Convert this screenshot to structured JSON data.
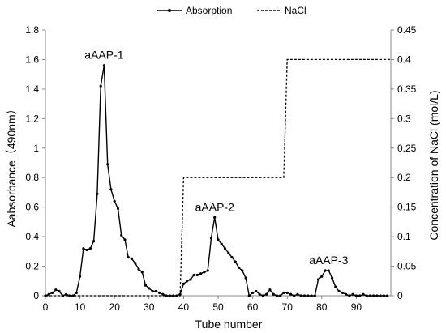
{
  "chart_data": {
    "type": "line",
    "xlabel": "Tube number",
    "ylabel": "Aabsorbance（490nm）",
    "y2label": "Concentration of NaCl (mol/L)",
    "xlim": [
      0,
      100
    ],
    "ylim": [
      0,
      1.8
    ],
    "y2lim": [
      0,
      0.45
    ],
    "x_ticks": [
      0,
      10,
      20,
      30,
      40,
      50,
      60,
      70,
      80,
      90
    ],
    "y_ticks": [
      "0",
      "0.2",
      "0.4",
      "0.6",
      "0.8",
      "1",
      "1.2",
      "1.4",
      "1.6",
      "1.8"
    ],
    "y2_ticks": [
      "0",
      "0.05",
      "0.1",
      "0.15",
      "0.2",
      "0.25",
      "0.3",
      "0.35",
      "0.4",
      "0.45"
    ],
    "legend_position": "top-center",
    "grid": false,
    "series": [
      {
        "name": "Absorption",
        "axis": "left",
        "style": "solid-with-markers",
        "color": "#000000",
        "points": [
          [
            0,
            0.0
          ],
          [
            1,
            0.01
          ],
          [
            2,
            0.02
          ],
          [
            3,
            0.04
          ],
          [
            4,
            0.03
          ],
          [
            5,
            0.0
          ],
          [
            6,
            0.01
          ],
          [
            7,
            0.0
          ],
          [
            8,
            0.0
          ],
          [
            9,
            0.02
          ],
          [
            10,
            0.13
          ],
          [
            11,
            0.32
          ],
          [
            12,
            0.31
          ],
          [
            13,
            0.32
          ],
          [
            14,
            0.37
          ],
          [
            15,
            0.69
          ],
          [
            16,
            1.42
          ],
          [
            17,
            1.56
          ],
          [
            18,
            0.89
          ],
          [
            19,
            0.72
          ],
          [
            20,
            0.64
          ],
          [
            21,
            0.59
          ],
          [
            22,
            0.41
          ],
          [
            23,
            0.38
          ],
          [
            24,
            0.26
          ],
          [
            25,
            0.25
          ],
          [
            26,
            0.22
          ],
          [
            27,
            0.18
          ],
          [
            28,
            0.16
          ],
          [
            29,
            0.07
          ],
          [
            30,
            0.05
          ],
          [
            31,
            0.03
          ],
          [
            32,
            0.03
          ],
          [
            33,
            0.02
          ],
          [
            34,
            0.01
          ],
          [
            35,
            0.0
          ],
          [
            36,
            0.0
          ],
          [
            37,
            0.0
          ],
          [
            38,
            0.0
          ],
          [
            39,
            0.01
          ],
          [
            40,
            0.08
          ],
          [
            41,
            0.1
          ],
          [
            42,
            0.11
          ],
          [
            43,
            0.14
          ],
          [
            44,
            0.14
          ],
          [
            45,
            0.15
          ],
          [
            46,
            0.16
          ],
          [
            47,
            0.17
          ],
          [
            48,
            0.39
          ],
          [
            49,
            0.53
          ],
          [
            50,
            0.38
          ],
          [
            51,
            0.35
          ],
          [
            52,
            0.32
          ],
          [
            53,
            0.29
          ],
          [
            54,
            0.26
          ],
          [
            55,
            0.23
          ],
          [
            56,
            0.19
          ],
          [
            57,
            0.17
          ],
          [
            58,
            0.12
          ],
          [
            59,
            0.0
          ],
          [
            60,
            0.02
          ],
          [
            61,
            0.03
          ],
          [
            62,
            0.01
          ],
          [
            63,
            0.0
          ],
          [
            64,
            0.01
          ],
          [
            65,
            0.04
          ],
          [
            66,
            0.01
          ],
          [
            67,
            0.0
          ],
          [
            68,
            0.0
          ],
          [
            69,
            0.02
          ],
          [
            70,
            0.02
          ],
          [
            71,
            0.01
          ],
          [
            72,
            0.0
          ],
          [
            73,
            0.01
          ],
          [
            74,
            0.0
          ],
          [
            75,
            0.0
          ],
          [
            76,
            0.0
          ],
          [
            77,
            0.0
          ],
          [
            78,
            0.0
          ],
          [
            79,
            0.11
          ],
          [
            80,
            0.13
          ],
          [
            81,
            0.17
          ],
          [
            82,
            0.17
          ],
          [
            83,
            0.12
          ],
          [
            84,
            0.06
          ],
          [
            85,
            0.03
          ],
          [
            86,
            0.02
          ],
          [
            87,
            0.01
          ],
          [
            88,
            0.0
          ],
          [
            89,
            0.01
          ],
          [
            90,
            0.0
          ],
          [
            91,
            0.0
          ],
          [
            92,
            0.01
          ],
          [
            93,
            0.0
          ],
          [
            94,
            0.0
          ],
          [
            95,
            0.0
          ],
          [
            96,
            0.0
          ],
          [
            97,
            0.0
          ],
          [
            98,
            0.0
          ],
          [
            99,
            0.0
          ]
        ]
      },
      {
        "name": "NaCl",
        "axis": "right",
        "style": "dashed",
        "color": "#000000",
        "points": [
          [
            0,
            0
          ],
          [
            39,
            0
          ],
          [
            40,
            0.2
          ],
          [
            69,
            0.2
          ],
          [
            70,
            0.4
          ],
          [
            100,
            0.4
          ]
        ]
      }
    ],
    "annotations": [
      {
        "text": "aAAP-1",
        "x": 17,
        "y": 1.56
      },
      {
        "text": "aAAP-2",
        "x": 49,
        "y": 0.53
      },
      {
        "text": "aAAP-3",
        "x": 82,
        "y": 0.17
      }
    ]
  }
}
